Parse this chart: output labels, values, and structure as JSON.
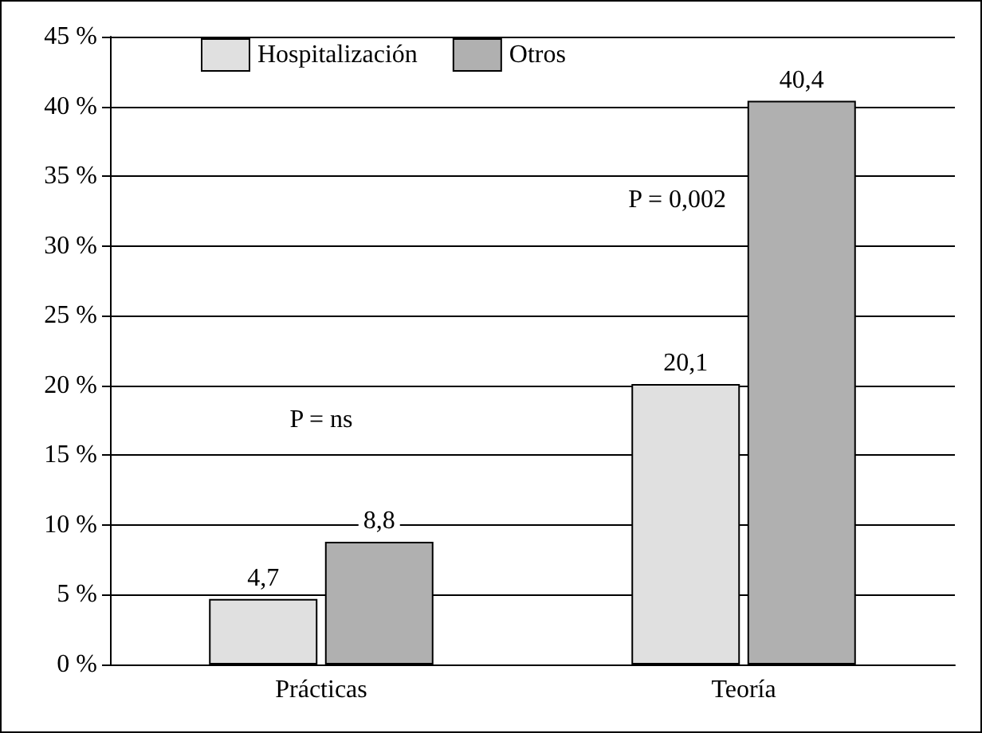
{
  "chart_data": {
    "type": "bar",
    "categories": [
      "Prácticas",
      "Teoría"
    ],
    "series": [
      {
        "name": "Hospitalización",
        "color": "#e0e0e0",
        "values": [
          4.7,
          20.1
        ],
        "value_labels": [
          "4,7",
          "20,1"
        ]
      },
      {
        "name": "Otros",
        "color": "#b0b0b0",
        "values": [
          8.8,
          40.4
        ],
        "value_labels": [
          "8,8",
          "40,4"
        ]
      }
    ],
    "ylim": [
      0,
      45
    ],
    "yticks": [
      {
        "value": 0,
        "label": "0 %"
      },
      {
        "value": 5,
        "label": "5 %"
      },
      {
        "value": 10,
        "label": "10 %"
      },
      {
        "value": 15,
        "label": "15 %"
      },
      {
        "value": 20,
        "label": "20 %"
      },
      {
        "value": 25,
        "label": "25 %"
      },
      {
        "value": 30,
        "label": "30 %"
      },
      {
        "value": 35,
        "label": "35 %"
      },
      {
        "value": 40,
        "label": "40 %"
      },
      {
        "value": 45,
        "label": "45 %"
      }
    ],
    "annotations": [
      "P = ns",
      "P = 0,002"
    ],
    "grid": "y",
    "legend": "top left"
  }
}
